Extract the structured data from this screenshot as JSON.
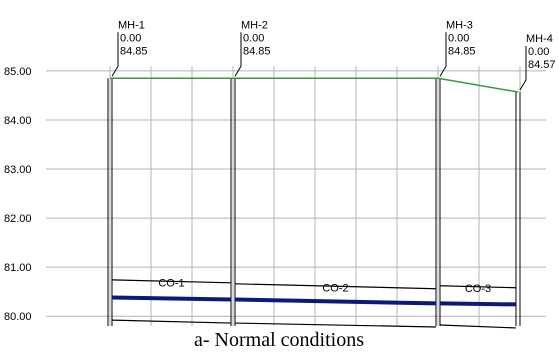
{
  "figure": {
    "caption": "a- Normal conditions"
  },
  "chart_data": {
    "type": "line",
    "ylim": [
      79.8,
      85.1
    ],
    "y_ticks": [
      "85.00",
      "84.00",
      "83.00",
      "82.00",
      "81.00",
      "80.00"
    ],
    "x_stations": [
      0,
      1,
      2,
      2.5
    ],
    "manholes": [
      {
        "name": "MH-1",
        "station": "0.00",
        "elevation": "84.85",
        "x": 0,
        "ground": 84.85
      },
      {
        "name": "MH-2",
        "station": "0.00",
        "elevation": "84.85",
        "x": 1,
        "ground": 84.85
      },
      {
        "name": "MH-3",
        "station": "0.00",
        "elevation": "84.85",
        "x": 2,
        "ground": 84.85
      },
      {
        "name": "MH-4",
        "station": "0.00",
        "elevation": "84.57",
        "x": 2.5,
        "ground": 84.57
      }
    ],
    "conduits": [
      {
        "name": "CO-1",
        "from_x": 0,
        "to_x": 1,
        "crown": [
          80.74,
          80.68
        ],
        "invert": [
          79.92,
          79.86
        ],
        "water": [
          80.38,
          80.34
        ]
      },
      {
        "name": "CO-2",
        "from_x": 1,
        "to_x": 2,
        "crown": [
          80.66,
          80.56
        ],
        "invert": [
          79.86,
          79.78
        ],
        "water": [
          80.34,
          80.26
        ]
      },
      {
        "name": "CO-3",
        "from_x": 2,
        "to_x": 2.5,
        "crown": [
          80.62,
          80.58
        ],
        "invert": [
          79.82,
          79.76
        ],
        "water": [
          80.26,
          80.24
        ]
      }
    ],
    "colors": {
      "ground": "#3a9a3a",
      "water": "#0a1a7a",
      "pipe": "#000000",
      "grid": "#b4b4b4"
    }
  }
}
